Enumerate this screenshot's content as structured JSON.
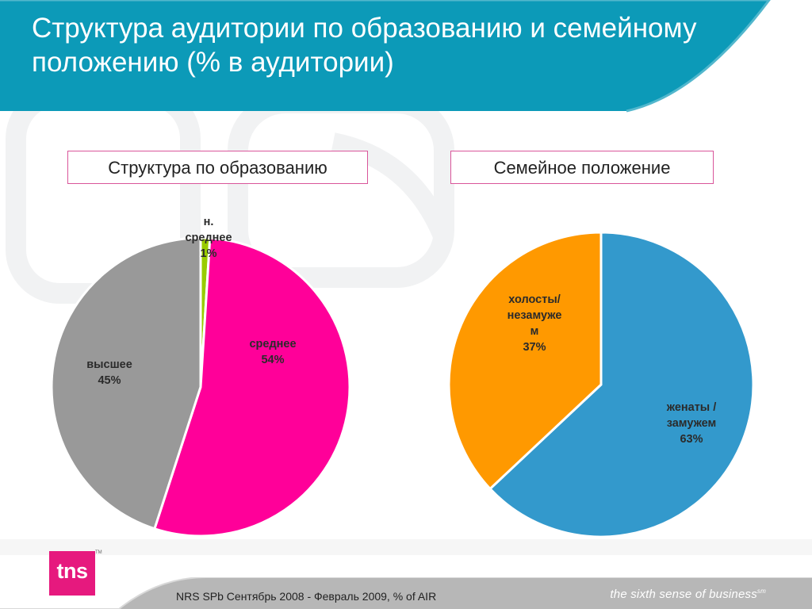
{
  "header": {
    "title": "Структура аудитории по образованию и семейному положению (% в аудитории)"
  },
  "left_panel": {
    "subtitle": "Структура по образованию"
  },
  "right_panel": {
    "subtitle": "Семейное положение"
  },
  "chart_data": [
    {
      "type": "pie",
      "title": "Структура по образованию",
      "categories": [
        "н. среднее",
        "среднее",
        "высшее"
      ],
      "values": [
        1,
        54,
        45
      ],
      "value_labels": [
        "1%",
        "54%",
        "45%"
      ],
      "colors": [
        "#99cc00",
        "#ff0099",
        "#999999"
      ],
      "start_angle_deg": 0,
      "legend": "none"
    },
    {
      "type": "pie",
      "title": "Семейное положение",
      "categories": [
        "женаты / замужем",
        "холосты/ незамужем"
      ],
      "values": [
        63,
        37
      ],
      "value_labels": [
        "63%",
        "37%"
      ],
      "colors": [
        "#3399cc",
        "#ff9900"
      ],
      "start_angle_deg": 0,
      "legend": "none"
    }
  ],
  "labels": {
    "edu_low_line1": "н.",
    "edu_low_line2": "среднее",
    "edu_low_pct": "1%",
    "edu_mid_name": "среднее",
    "edu_mid_pct": "54%",
    "edu_high_name": "высшее",
    "edu_high_pct": "45%",
    "fam_single_line1": "холосты/",
    "fam_single_line2": "незамуже",
    "fam_single_line3": "м",
    "fam_single_pct": "37%",
    "fam_married_line1": "женаты /",
    "fam_married_line2": "замужем",
    "fam_married_pct": "63%"
  },
  "footer": {
    "source": "NRS SPb Сентябрь 2008 - Февраль 2009, % of AIR",
    "tagline": "the sixth sense of business",
    "tagline_mark": "sm",
    "logo_text": "tns",
    "logo_mark": "TM"
  },
  "colors": {
    "header": "#0c9ab8",
    "brand_pink": "#e6197e",
    "footer_band": "#b7b7b7"
  }
}
